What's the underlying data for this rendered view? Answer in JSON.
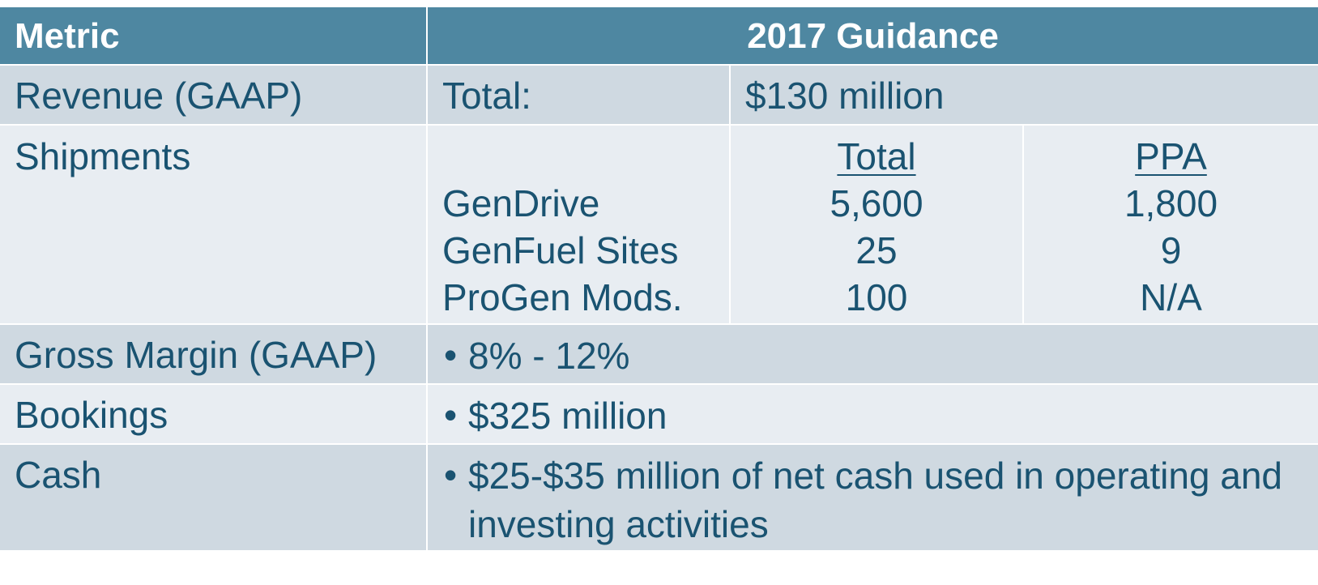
{
  "header": {
    "metric": "Metric",
    "guidance": "2017 Guidance"
  },
  "revenue": {
    "metric": "Revenue (GAAP)",
    "label": "Total:",
    "value": "$130 million"
  },
  "shipments": {
    "metric": "Shipments",
    "col_total": "Total",
    "col_ppa": "PPA",
    "items": [
      {
        "name": "GenDrive",
        "total": "5,600",
        "ppa": "1,800"
      },
      {
        "name": "GenFuel Sites",
        "total": "25",
        "ppa": "9"
      },
      {
        "name": "ProGen Mods.",
        "total": "100",
        "ppa": "N/A"
      }
    ]
  },
  "gross_margin": {
    "metric": "Gross Margin (GAAP)",
    "value": "8% - 12%"
  },
  "bookings": {
    "metric": "Bookings",
    "value": "$325 million"
  },
  "cash": {
    "metric": "Cash",
    "value": "$25-$35 million of net cash used in operating and investing activities"
  },
  "bullet_glyph": "•",
  "colors": {
    "header_bg": "#4e87a1",
    "band_dark": "#cfd9e1",
    "band_light": "#e8edf2",
    "text": "#1a5371"
  }
}
